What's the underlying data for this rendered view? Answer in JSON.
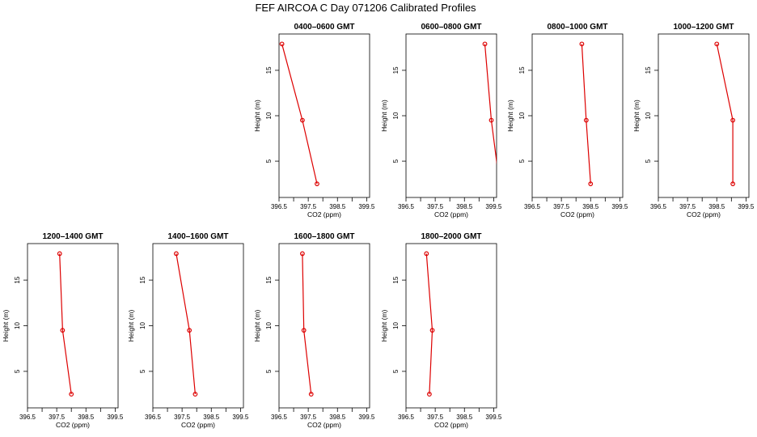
{
  "title": "FEF AIRCOA C  Day 071206  Calibrated Profiles",
  "colors": {
    "series": "#dd0000",
    "axis": "#000000",
    "background": "#ffffff"
  },
  "chart_data": [
    {
      "type": "line",
      "title": "0400–0600 GMT",
      "xlabel": "CO2 (ppm)",
      "ylabel": "Height (m)",
      "xlim": [
        396.5,
        399.6
      ],
      "ylim": [
        1,
        19
      ],
      "xticks": [
        396.5,
        397.5,
        398.5,
        399.5
      ],
      "xtick_labels": [
        "396.5",
        "397.5",
        "398.5",
        "399.5"
      ],
      "minor_xticks": [
        397.0,
        398.0,
        399.0
      ],
      "yticks": [
        5,
        10,
        15
      ],
      "ytick_labels": [
        "5",
        "10",
        "15"
      ],
      "x": [
        396.6,
        397.3,
        397.8
      ],
      "y": [
        17.9,
        9.5,
        2.5
      ]
    },
    {
      "type": "line",
      "title": "0600–0800 GMT",
      "xlabel": "CO2 (ppm)",
      "ylabel": "Height (m)",
      "xlim": [
        396.5,
        399.6
      ],
      "ylim": [
        1,
        19
      ],
      "xticks": [
        396.5,
        397.5,
        398.5,
        399.5
      ],
      "xtick_labels": [
        "396.5",
        "397.5",
        "398.5",
        "399.5"
      ],
      "minor_xticks": [
        397.0,
        398.0,
        399.0
      ],
      "yticks": [
        5,
        10,
        15
      ],
      "ytick_labels": [
        "5",
        "10",
        "15"
      ],
      "x": [
        399.2,
        399.42,
        399.7
      ],
      "y": [
        17.9,
        9.5,
        2.5
      ]
    },
    {
      "type": "line",
      "title": "0800–1000 GMT",
      "xlabel": "CO2 (ppm)",
      "ylabel": "Height (m)",
      "xlim": [
        396.5,
        399.6
      ],
      "ylim": [
        1,
        19
      ],
      "xticks": [
        396.5,
        397.5,
        398.5,
        399.5
      ],
      "xtick_labels": [
        "396.5",
        "397.5",
        "398.5",
        "399.5"
      ],
      "minor_xticks": [
        397.0,
        398.0,
        399.0
      ],
      "yticks": [
        5,
        10,
        15
      ],
      "ytick_labels": [
        "5",
        "10",
        "15"
      ],
      "x": [
        398.2,
        398.35,
        398.5
      ],
      "y": [
        17.9,
        9.5,
        2.5
      ]
    },
    {
      "type": "line",
      "title": "1000–1200 GMT",
      "xlabel": "CO2 (ppm)",
      "ylabel": "Height (m)",
      "xlim": [
        396.5,
        399.6
      ],
      "ylim": [
        1,
        19
      ],
      "xticks": [
        396.5,
        397.5,
        398.5,
        399.5
      ],
      "xtick_labels": [
        "396.5",
        "397.5",
        "398.5",
        "399.5"
      ],
      "minor_xticks": [
        397.0,
        398.0,
        399.0
      ],
      "yticks": [
        5,
        10,
        15
      ],
      "ytick_labels": [
        "5",
        "10",
        "15"
      ],
      "x": [
        398.5,
        399.05,
        399.05
      ],
      "y": [
        17.9,
        9.5,
        2.5
      ]
    },
    {
      "type": "line",
      "title": "1200–1400 GMT",
      "xlabel": "CO2 (ppm)",
      "ylabel": "Height (m)",
      "xlim": [
        396.5,
        399.6
      ],
      "ylim": [
        1,
        19
      ],
      "xticks": [
        396.5,
        397.5,
        398.5,
        399.5
      ],
      "xtick_labels": [
        "396.5",
        "397.5",
        "398.5",
        "399.5"
      ],
      "minor_xticks": [
        397.0,
        398.0,
        399.0
      ],
      "yticks": [
        5,
        10,
        15
      ],
      "ytick_labels": [
        "5",
        "10",
        "15"
      ],
      "x": [
        397.6,
        397.7,
        398.0
      ],
      "y": [
        17.9,
        9.5,
        2.5
      ]
    },
    {
      "type": "line",
      "title": "1400–1600 GMT",
      "xlabel": "CO2 (ppm)",
      "ylabel": "Height (m)",
      "xlim": [
        396.5,
        399.6
      ],
      "ylim": [
        1,
        19
      ],
      "xticks": [
        396.5,
        397.5,
        398.5,
        399.5
      ],
      "xtick_labels": [
        "396.5",
        "397.5",
        "398.5",
        "399.5"
      ],
      "minor_xticks": [
        397.0,
        398.0,
        399.0
      ],
      "yticks": [
        5,
        10,
        15
      ],
      "ytick_labels": [
        "5",
        "10",
        "15"
      ],
      "x": [
        397.3,
        397.75,
        397.95
      ],
      "y": [
        17.9,
        9.5,
        2.5
      ]
    },
    {
      "type": "line",
      "title": "1600–1800 GMT",
      "xlabel": "CO2 (ppm)",
      "ylabel": "Height (m)",
      "xlim": [
        396.5,
        399.6
      ],
      "ylim": [
        1,
        19
      ],
      "xticks": [
        396.5,
        397.5,
        398.5,
        399.5
      ],
      "xtick_labels": [
        "396.5",
        "397.5",
        "398.5",
        "399.5"
      ],
      "minor_xticks": [
        397.0,
        398.0,
        399.0
      ],
      "yticks": [
        5,
        10,
        15
      ],
      "ytick_labels": [
        "5",
        "10",
        "15"
      ],
      "x": [
        397.3,
        397.35,
        397.6
      ],
      "y": [
        17.9,
        9.5,
        2.5
      ]
    },
    {
      "type": "line",
      "title": "1800–2000 GMT",
      "xlabel": "CO2 (ppm)",
      "ylabel": "Height (m)",
      "xlim": [
        396.5,
        399.6
      ],
      "ylim": [
        1,
        19
      ],
      "xticks": [
        396.5,
        397.5,
        398.5,
        399.5
      ],
      "xtick_labels": [
        "396.5",
        "397.5",
        "398.5",
        "399.5"
      ],
      "minor_xticks": [
        397.0,
        398.0,
        399.0
      ],
      "yticks": [
        5,
        10,
        15
      ],
      "ytick_labels": [
        "5",
        "10",
        "15"
      ],
      "x": [
        397.2,
        397.4,
        397.3
      ],
      "y": [
        17.9,
        9.5,
        2.5
      ]
    }
  ]
}
